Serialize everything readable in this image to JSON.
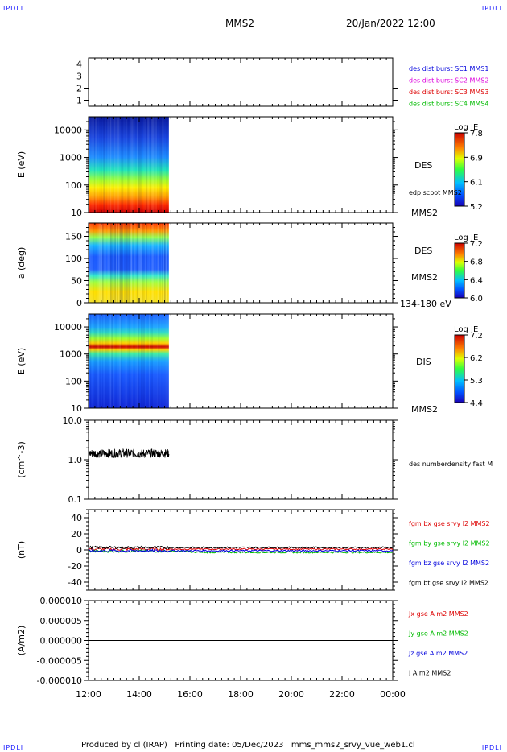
{
  "corners": {
    "tl": "IPDLI",
    "tr": "IPDLI",
    "bl": "IPDLI",
    "br": "IPDLI"
  },
  "header": {
    "mission": "MMS2",
    "datetime": "20/Jan/2022 12:00"
  },
  "footer": {
    "text": "Produced by cl (IRAP)   Printing date: 05/Dec/2023   mms_mms2_srvy_vue_web1.cl"
  },
  "colors": {
    "blue": "#0000dd",
    "magenta": "#dd00dd",
    "red": "#dd0000",
    "green": "#00bb00",
    "black": "#000000"
  },
  "chart_data": [
    {
      "id": "burst",
      "type": "line",
      "ylim": [
        0.5,
        4.5
      ],
      "yticks": [
        "1",
        "2",
        "3",
        "4"
      ],
      "legend": [
        {
          "text": "des dist burst SC1 MMS1",
          "color": "#0000dd"
        },
        {
          "text": "des dist burst SC2 MMS2",
          "color": "#dd00dd"
        },
        {
          "text": "des dist burst SC3 MMS3",
          "color": "#dd0000"
        },
        {
          "text": "des dist burst SC4 MMS4",
          "color": "#00bb00"
        }
      ]
    },
    {
      "id": "des_energy",
      "type": "heatmap",
      "ylabel": "E (eV)",
      "yscale": "log",
      "ylim": [
        10,
        30000
      ],
      "yticks": [
        "10",
        "100",
        "1000",
        "10000"
      ],
      "data_x_range": [
        "12:00",
        "15:10"
      ],
      "colorbar": {
        "title": "Log JE",
        "ticks": [
          "7.8",
          "6.9",
          "6.1",
          "5.2"
        ]
      },
      "labels": [
        "DES",
        "edp scpot MMS2",
        "MMS2"
      ]
    },
    {
      "id": "des_pitch",
      "type": "heatmap",
      "ylabel": "a (deg)",
      "ylim": [
        0,
        180
      ],
      "yticks": [
        "0",
        "50",
        "100",
        "150"
      ],
      "data_x_range": [
        "12:00",
        "15:10"
      ],
      "colorbar": {
        "title": "Log JE",
        "ticks": [
          "7.2",
          "6.8",
          "6.4",
          "6.0"
        ]
      },
      "labels": [
        "DES",
        "MMS2",
        "134-180 eV"
      ]
    },
    {
      "id": "dis_energy",
      "type": "heatmap",
      "ylabel": "E (eV)",
      "yscale": "log",
      "ylim": [
        10,
        30000
      ],
      "yticks": [
        "10",
        "100",
        "1000",
        "10000"
      ],
      "data_x_range": [
        "12:00",
        "15:10"
      ],
      "colorbar": {
        "title": "Log JE",
        "ticks": [
          "7.2",
          "6.2",
          "5.3",
          "4.4"
        ]
      },
      "labels": [
        "DIS",
        "MMS2"
      ]
    },
    {
      "id": "density",
      "type": "line",
      "ylabel": "(cm^-3)",
      "yscale": "log",
      "ylim": [
        0.1,
        10
      ],
      "yticks": [
        "0.1",
        "1.0",
        "10.0"
      ],
      "data_x_range": [
        "12:00",
        "15:10"
      ],
      "level": 1.45,
      "legend": [
        {
          "text": "des numberdensity fast M",
          "color": "#000000"
        }
      ]
    },
    {
      "id": "bfield",
      "type": "line",
      "ylabel": "(nT)",
      "ylim": [
        -50,
        50
      ],
      "yticks": [
        "-40",
        "-20",
        "0",
        "20",
        "40"
      ],
      "series": [
        {
          "name": "fgm bx gse srvy l2 MMS2",
          "color": "#dd0000",
          "level": 1
        },
        {
          "name": "fgm by gse srvy l2 MMS2",
          "color": "#00bb00",
          "level": -1.5
        },
        {
          "name": "fgm bz gse srvy l2 MMS2",
          "color": "#0000dd",
          "level": -1
        },
        {
          "name": "fgm bt gse srvy l2 MMS2",
          "color": "#000000",
          "level": 3
        }
      ]
    },
    {
      "id": "current",
      "type": "line",
      "ylabel": "(A/m2)",
      "ylim": [
        -1e-05,
        1e-05
      ],
      "yticks": [
        "-0.000010",
        "-0.000005",
        "0.000000",
        "0.000005",
        "0.000010"
      ],
      "series": [
        {
          "name": "Jx gse A m2 MMS2",
          "color": "#dd0000"
        },
        {
          "name": "Jy gse A m2 MMS2",
          "color": "#00bb00"
        },
        {
          "name": "Jz gse A m2 MMS2",
          "color": "#0000dd"
        },
        {
          "name": "J A m2 MMS2",
          "color": "#000000"
        }
      ]
    }
  ],
  "xaxis": {
    "ticks": [
      "12:00",
      "14:00",
      "16:00",
      "18:00",
      "20:00",
      "22:00",
      "00:00"
    ]
  }
}
